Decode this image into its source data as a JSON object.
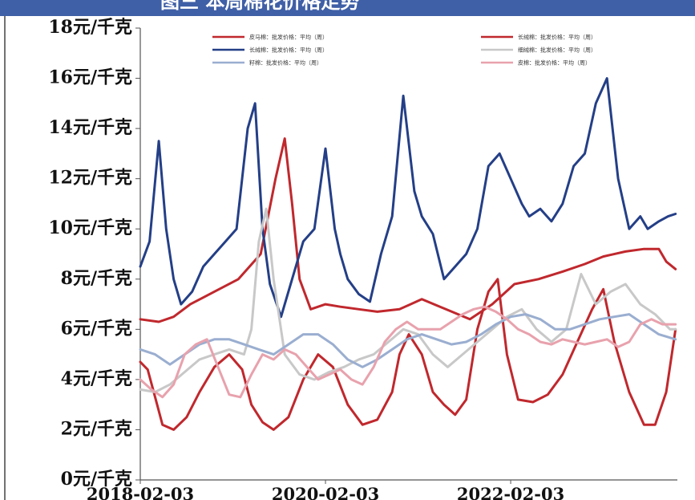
{
  "header": {
    "title": "图三   本周棉花价格走势",
    "bar_color": "#3f5fa6"
  },
  "chart_data": {
    "type": "line",
    "title": "",
    "xlabel": "",
    "ylabel": "",
    "ylim": [
      0,
      18
    ],
    "y_ticks": [
      0,
      2,
      4,
      6,
      8,
      10,
      12,
      14,
      16,
      18
    ],
    "y_tick_labels": [
      "0元/千克",
      "2元/千克",
      "4元/千克",
      "6元/千克",
      "8元/千克",
      "10元/千克",
      "12元/千克",
      "14元/千克",
      "16元/千克",
      "18元/千克"
    ],
    "x_ticks": [
      0,
      1,
      2
    ],
    "x_tick_labels": [
      "2018-02-03",
      "2020-02-03",
      "2022-02-03"
    ],
    "x_range": [
      0,
      2.9
    ],
    "grid": false,
    "legend_position": "top",
    "series": [
      {
        "name": "皮马棉：批发价格：平均（周）",
        "color": "#c0282d",
        "x": [
          0.0,
          0.1,
          0.18,
          0.27,
          0.4,
          0.53,
          0.65,
          0.73,
          0.78,
          0.82,
          0.86,
          0.92,
          1.0,
          1.08,
          1.18,
          1.28,
          1.4,
          1.52,
          1.65,
          1.78,
          1.9,
          2.02,
          2.15,
          2.28,
          2.4,
          2.5,
          2.62,
          2.72,
          2.8,
          2.84,
          2.89
        ],
        "values": [
          6.4,
          6.3,
          6.5,
          7.0,
          7.5,
          8.0,
          9.0,
          12.0,
          13.6,
          11.0,
          8.0,
          6.8,
          7.0,
          6.9,
          6.8,
          6.7,
          6.8,
          7.2,
          6.8,
          6.4,
          7.0,
          7.8,
          8.0,
          8.3,
          8.6,
          8.9,
          9.1,
          9.2,
          9.2,
          8.7,
          8.4
        ]
      },
      {
        "name": "长绒棉：批发价格：平均（周）",
        "color": "#c0282d",
        "x": [
          0.0,
          0.04,
          0.08,
          0.12,
          0.18,
          0.25,
          0.32,
          0.4,
          0.48,
          0.55,
          0.6,
          0.66,
          0.72,
          0.8,
          0.88,
          0.96,
          1.04,
          1.12,
          1.2,
          1.28,
          1.36,
          1.4,
          1.45,
          1.52,
          1.58,
          1.64,
          1.7,
          1.76,
          1.82,
          1.88,
          1.93,
          1.98,
          2.04,
          2.12,
          2.2,
          2.28,
          2.36,
          2.44,
          2.5,
          2.56,
          2.64,
          2.72,
          2.78,
          2.84,
          2.89
        ],
        "values": [
          4.7,
          4.4,
          3.3,
          2.2,
          2.0,
          2.5,
          3.5,
          4.5,
          5.0,
          4.4,
          3.0,
          2.3,
          2.0,
          2.5,
          4.0,
          5.0,
          4.5,
          3.0,
          2.2,
          2.4,
          3.5,
          5.0,
          5.8,
          5.0,
          3.5,
          3.0,
          2.6,
          3.2,
          6.0,
          7.5,
          8.0,
          5.0,
          3.2,
          3.1,
          3.4,
          4.2,
          5.5,
          6.8,
          7.6,
          5.5,
          3.5,
          2.2,
          2.2,
          3.5,
          6.0
        ]
      },
      {
        "name": "长绒棉：批发价格：平均（周）",
        "color": "#243f87",
        "x": [
          0.0,
          0.05,
          0.1,
          0.14,
          0.18,
          0.22,
          0.28,
          0.34,
          0.4,
          0.46,
          0.52,
          0.58,
          0.62,
          0.66,
          0.7,
          0.76,
          0.82,
          0.88,
          0.94,
          1.0,
          1.05,
          1.08,
          1.12,
          1.18,
          1.24,
          1.3,
          1.36,
          1.42,
          1.48,
          1.52,
          1.58,
          1.64,
          1.7,
          1.76,
          1.82,
          1.88,
          1.94,
          2.0,
          2.06,
          2.1,
          2.16,
          2.22,
          2.28,
          2.34,
          2.4,
          2.46,
          2.52,
          2.58,
          2.64,
          2.7,
          2.74,
          2.8,
          2.85,
          2.89
        ],
        "values": [
          8.5,
          9.5,
          13.5,
          10.0,
          8.0,
          7.0,
          7.5,
          8.5,
          9.0,
          9.5,
          10.0,
          14.0,
          15.0,
          10.0,
          7.8,
          6.5,
          8.0,
          9.5,
          10.0,
          13.2,
          10.0,
          9.0,
          8.0,
          7.4,
          7.1,
          9.0,
          10.5,
          15.3,
          11.5,
          10.5,
          9.8,
          8.0,
          8.5,
          9.0,
          10.0,
          12.5,
          13.0,
          12.0,
          11.0,
          10.5,
          10.8,
          10.3,
          11.0,
          12.5,
          13.0,
          15.0,
          16.0,
          12.0,
          10.0,
          10.5,
          10.0,
          10.3,
          10.5,
          10.6
        ]
      },
      {
        "name": "细绒棉：批发价格：平均（周）",
        "color": "#c8c8c8",
        "x": [
          0.0,
          0.08,
          0.16,
          0.24,
          0.32,
          0.4,
          0.48,
          0.56,
          0.6,
          0.64,
          0.68,
          0.72,
          0.78,
          0.86,
          0.94,
          1.02,
          1.1,
          1.18,
          1.26,
          1.34,
          1.42,
          1.5,
          1.58,
          1.66,
          1.74,
          1.82,
          1.9,
          1.98,
          2.06,
          2.14,
          2.22,
          2.3,
          2.38,
          2.46,
          2.54,
          2.62,
          2.7,
          2.78,
          2.86,
          2.89
        ],
        "values": [
          3.6,
          3.5,
          3.8,
          4.3,
          4.8,
          5.0,
          5.2,
          5.0,
          6.0,
          9.5,
          10.8,
          8.0,
          5.0,
          4.2,
          4.0,
          4.3,
          4.5,
          4.8,
          5.0,
          5.5,
          6.0,
          5.8,
          5.0,
          4.5,
          5.0,
          5.5,
          6.0,
          6.5,
          6.8,
          6.0,
          5.5,
          6.0,
          8.2,
          7.0,
          7.5,
          7.8,
          7.0,
          6.6,
          6.0,
          6.0
        ]
      },
      {
        "name": "籽棉：批发价格：平均（周）",
        "color": "#9aaed0",
        "x": [
          0.0,
          0.08,
          0.16,
          0.24,
          0.32,
          0.4,
          0.48,
          0.56,
          0.64,
          0.72,
          0.8,
          0.88,
          0.96,
          1.04,
          1.12,
          1.2,
          1.28,
          1.36,
          1.44,
          1.52,
          1.6,
          1.68,
          1.76,
          1.84,
          1.92,
          2.0,
          2.08,
          2.16,
          2.24,
          2.32,
          2.4,
          2.48,
          2.56,
          2.64,
          2.72,
          2.8,
          2.89
        ],
        "values": [
          5.2,
          5.0,
          4.6,
          5.0,
          5.4,
          5.6,
          5.6,
          5.4,
          5.2,
          5.0,
          5.4,
          5.8,
          5.8,
          5.4,
          4.8,
          4.5,
          4.8,
          5.2,
          5.6,
          5.8,
          5.6,
          5.4,
          5.5,
          5.8,
          6.2,
          6.5,
          6.6,
          6.4,
          6.0,
          6.0,
          6.2,
          6.4,
          6.5,
          6.6,
          6.2,
          5.8,
          5.6
        ]
      },
      {
        "name": "皮棉：批发价格：平均（周）",
        "color": "#e8a2ad",
        "x": [
          0.0,
          0.06,
          0.12,
          0.18,
          0.24,
          0.3,
          0.36,
          0.42,
          0.48,
          0.54,
          0.6,
          0.66,
          0.72,
          0.78,
          0.84,
          0.9,
          0.96,
          1.02,
          1.08,
          1.14,
          1.2,
          1.26,
          1.32,
          1.38,
          1.44,
          1.5,
          1.56,
          1.62,
          1.68,
          1.74,
          1.8,
          1.86,
          1.92,
          1.98,
          2.04,
          2.1,
          2.16,
          2.22,
          2.28,
          2.34,
          2.4,
          2.46,
          2.52,
          2.58,
          2.64,
          2.7,
          2.76,
          2.82,
          2.89
        ],
        "values": [
          4.0,
          3.6,
          3.3,
          3.8,
          5.0,
          5.4,
          5.6,
          4.5,
          3.4,
          3.3,
          4.2,
          5.0,
          4.8,
          5.2,
          5.0,
          4.5,
          4.0,
          4.2,
          4.4,
          4.0,
          3.8,
          4.5,
          5.5,
          6.0,
          6.3,
          6.0,
          6.0,
          6.0,
          6.3,
          6.6,
          6.8,
          6.9,
          6.7,
          6.4,
          6.0,
          5.8,
          5.5,
          5.4,
          5.6,
          5.5,
          5.4,
          5.5,
          5.6,
          5.3,
          5.5,
          6.2,
          6.4,
          6.2,
          6.2
        ]
      }
    ]
  }
}
